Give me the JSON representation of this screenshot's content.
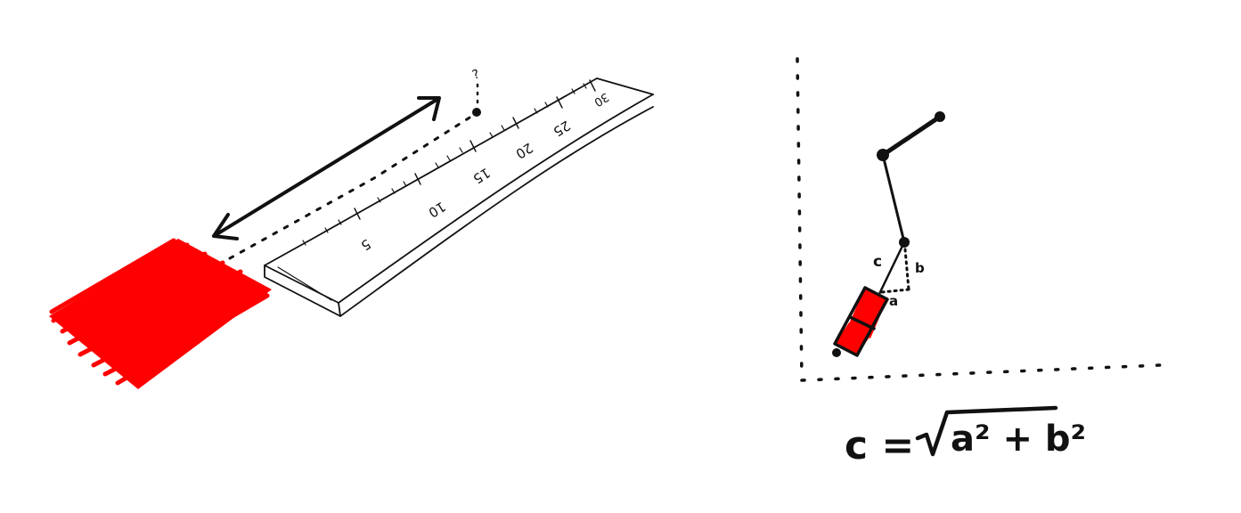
{
  "colors": {
    "ink": "#111111",
    "fill_red": "#ff0000",
    "background": "#ffffff"
  },
  "left_sketch": {
    "ruler_ticks": [
      "5",
      "10",
      "15",
      "20",
      "25",
      "30"
    ],
    "question_mark": "?"
  },
  "right_sketch": {
    "labels": {
      "c": "c",
      "b": "b",
      "a": "a"
    },
    "formula": {
      "lhs": "c =",
      "radicand": "a² + b²"
    }
  }
}
